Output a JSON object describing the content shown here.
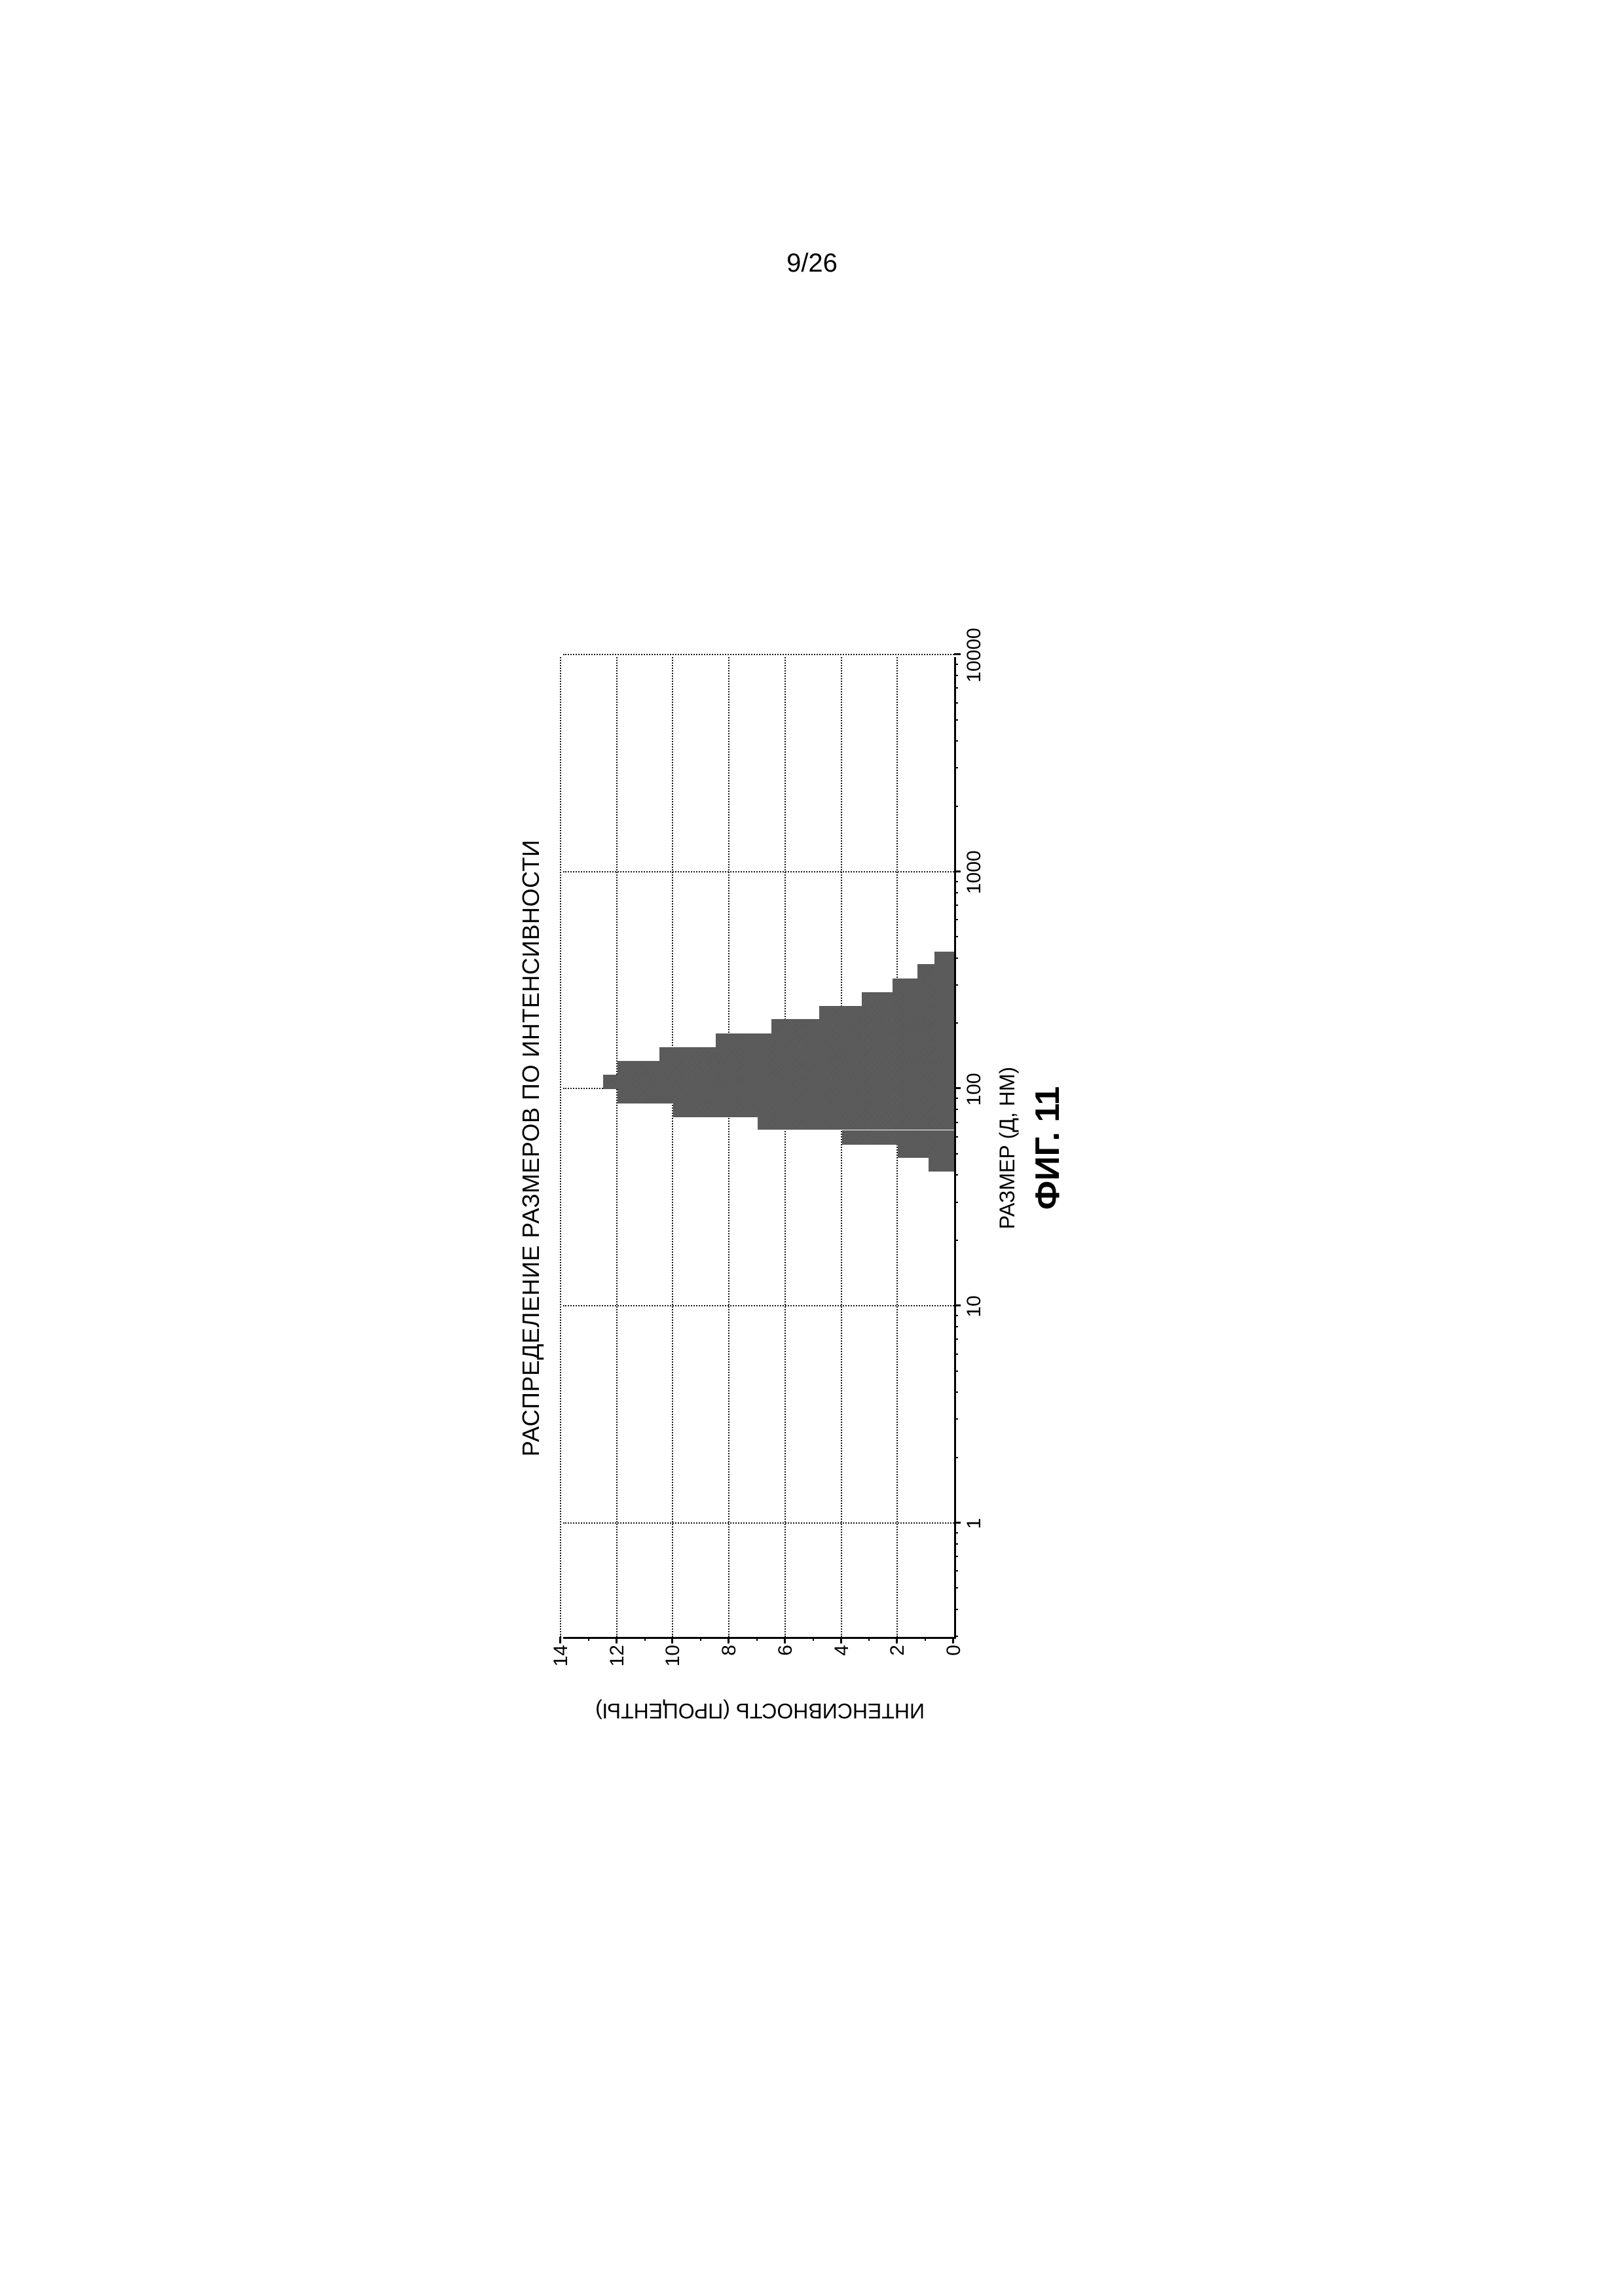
{
  "page_number": "9/26",
  "figure": {
    "type": "histogram",
    "title": "РАСПРЕДЕЛЕНИЕ РАЗМЕРОВ ПО ИНТЕНСИВНОСТИ",
    "x_axis_label": "РАЗМЕР (Д, НМ)",
    "y_axis_label": "ИНТЕНСИВНОСТЬ (ПРОЦЕНТЫ)",
    "caption": "ФИГ. 11",
    "x_scale": "log",
    "x_min": 0.3,
    "x_max": 10000,
    "x_major_ticks": [
      1,
      10,
      100,
      1000,
      10000
    ],
    "x_major_tick_labels": [
      "1",
      "10",
      "100",
      "1000",
      "10000"
    ],
    "y_scale": "linear",
    "y_min": 0,
    "y_max": 14,
    "y_step": 2,
    "y_ticks": [
      0,
      2,
      4,
      6,
      8,
      10,
      12,
      14
    ],
    "bar_fill": "#585858",
    "bar_noise": true,
    "grid_color": "#000000",
    "axis_color": "#000000",
    "background_color": "#ffffff",
    "title_fontsize": 36,
    "label_fontsize": 32,
    "tick_fontsize": 30,
    "caption_fontsize": 52,
    "bars": [
      {
        "x_center": 45,
        "y": 0.9
      },
      {
        "x_center": 52,
        "y": 2.0
      },
      {
        "x_center": 60,
        "y": 4.0
      },
      {
        "x_center": 70,
        "y": 7.0
      },
      {
        "x_center": 80,
        "y": 10.0
      },
      {
        "x_center": 93,
        "y": 12.0
      },
      {
        "x_center": 108,
        "y": 12.5
      },
      {
        "x_center": 125,
        "y": 12.0
      },
      {
        "x_center": 145,
        "y": 10.5
      },
      {
        "x_center": 168,
        "y": 8.5
      },
      {
        "x_center": 195,
        "y": 6.5
      },
      {
        "x_center": 225,
        "y": 4.8
      },
      {
        "x_center": 260,
        "y": 3.3
      },
      {
        "x_center": 300,
        "y": 2.2
      },
      {
        "x_center": 350,
        "y": 1.3
      },
      {
        "x_center": 400,
        "y": 0.7
      }
    ],
    "bar_log_width": 0.065
  }
}
